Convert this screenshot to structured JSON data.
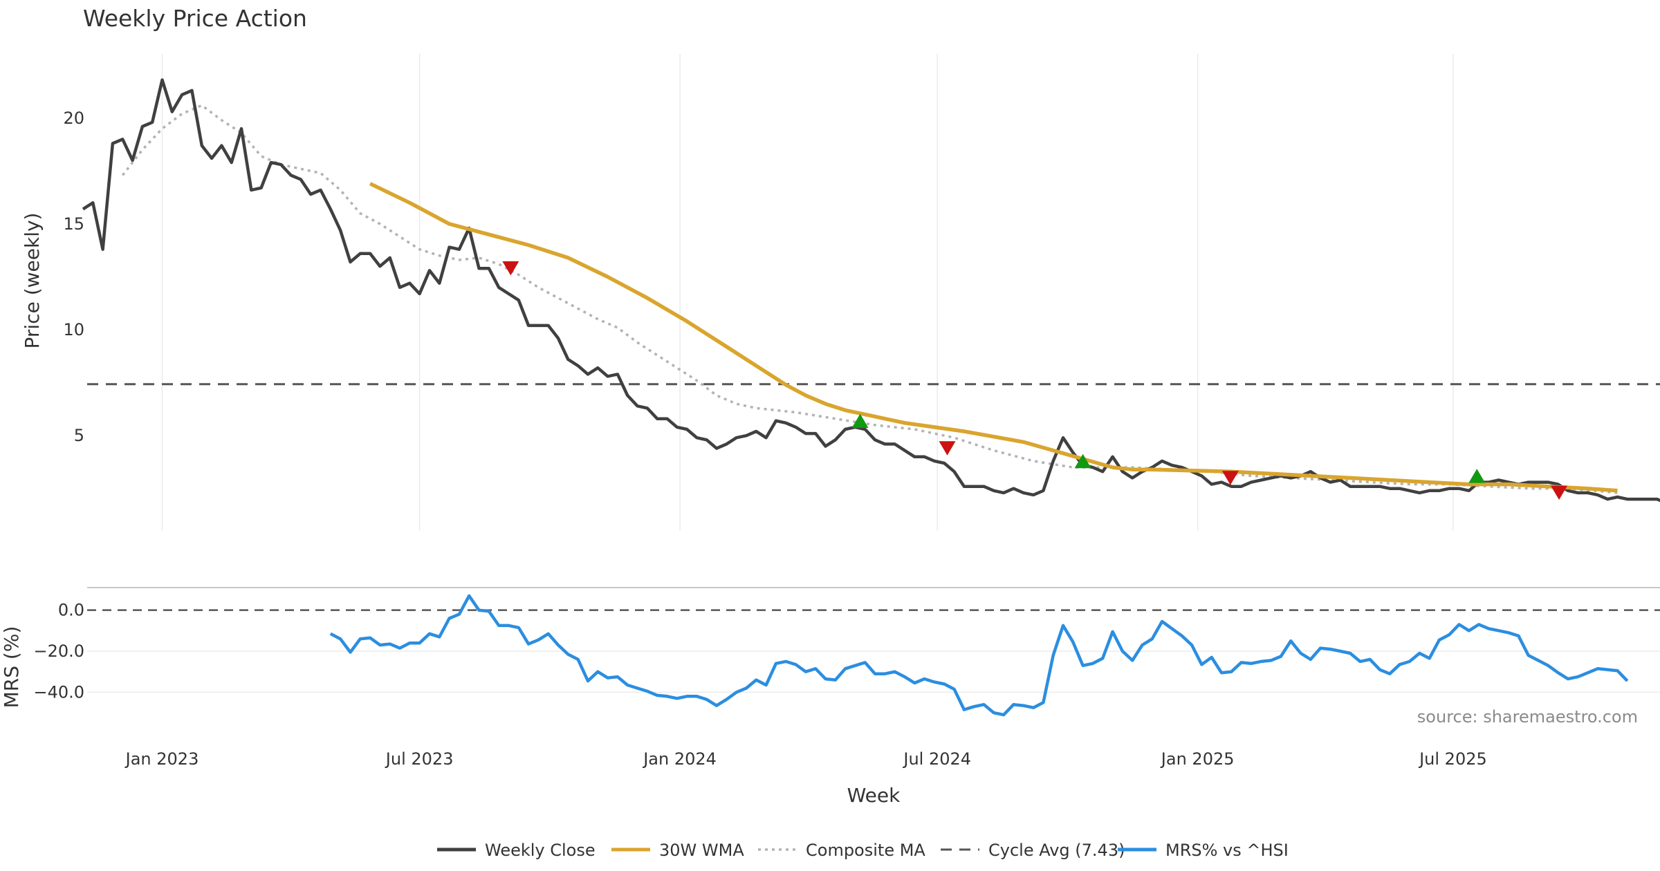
{
  "chart_data": {
    "type": "line",
    "title": "Weekly Price Action",
    "xlabel": "Week",
    "source": "source: sharemaestro.com",
    "x_ticks": [
      {
        "label": "Jan 2023",
        "t": 0
      },
      {
        "label": "Jul 2023",
        "t": 26
      },
      {
        "label": "Jan 2024",
        "t": 52.3
      },
      {
        "label": "Jul 2024",
        "t": 78.3
      },
      {
        "label": "Jan 2025",
        "t": 104.6
      },
      {
        "label": "Jul 2025",
        "t": 130.4
      }
    ],
    "x_range": [
      -8,
      148.5
    ],
    "price_panel": {
      "ylabel": "Price (weekly)",
      "ylim": [
        0.5,
        22.8
      ],
      "y_ticks": [
        5,
        10,
        15,
        20
      ],
      "cycle_avg": 7.43,
      "series": [
        {
          "name": "Weekly Close",
          "color": "#404040",
          "start": -8,
          "values": [
            15.7,
            16.0,
            13.8,
            18.8,
            19.0,
            18.0,
            19.6,
            19.8,
            21.8,
            20.3,
            21.1,
            21.3,
            18.7,
            18.1,
            18.7,
            17.9,
            19.5,
            16.6,
            16.7,
            17.9,
            17.8,
            17.3,
            17.1,
            16.4,
            16.6,
            15.7,
            14.7,
            13.2,
            13.6,
            13.6,
            13.0,
            13.4,
            12.0,
            12.2,
            11.7,
            12.8,
            12.2,
            13.9,
            13.8,
            14.8,
            12.9,
            12.9,
            12.0,
            11.7,
            11.4,
            10.2,
            10.2,
            10.2,
            9.6,
            8.6,
            8.3,
            7.9,
            8.2,
            7.8,
            7.9,
            6.9,
            6.4,
            6.3,
            5.8,
            5.8,
            5.4,
            5.3,
            4.9,
            4.8,
            4.4,
            4.6,
            4.9,
            5.0,
            5.2,
            4.9,
            5.7,
            5.6,
            5.4,
            5.1,
            5.1,
            4.5,
            4.8,
            5.3,
            5.4,
            5.3,
            4.8,
            4.6,
            4.6,
            4.3,
            4.0,
            4.0,
            3.8,
            3.7,
            3.3,
            2.6,
            2.6,
            2.6,
            2.4,
            2.3,
            2.5,
            2.3,
            2.2,
            2.4,
            3.8,
            4.9,
            4.2,
            3.6,
            3.5,
            3.3,
            4.0,
            3.3,
            3.0,
            3.3,
            3.5,
            3.8,
            3.6,
            3.5,
            3.3,
            3.1,
            2.7,
            2.8,
            2.6,
            2.6,
            2.8,
            2.9,
            3.0,
            3.1,
            3.0,
            3.1,
            3.3,
            3.0,
            2.8,
            2.9,
            2.6,
            2.6,
            2.6,
            2.6,
            2.5,
            2.5,
            2.4,
            2.3,
            2.4,
            2.4,
            2.5,
            2.5,
            2.4,
            2.8,
            2.8,
            2.9,
            2.8,
            2.7,
            2.8,
            2.8,
            2.8,
            2.7,
            2.4,
            2.3,
            2.3,
            2.2,
            2.0,
            2.1,
            2.0,
            2.0,
            2.0,
            2.0,
            1.8
          ]
        },
        {
          "name": "30W WMA",
          "color": "#d9a52e",
          "points": [
            [
              21,
              16.9
            ],
            [
              25,
              16.0
            ],
            [
              29,
              15.0
            ],
            [
              33,
              14.5
            ],
            [
              37,
              14.0
            ],
            [
              41,
              13.4
            ],
            [
              45,
              12.5
            ],
            [
              49,
              11.5
            ],
            [
              53,
              10.4
            ],
            [
              57,
              9.2
            ],
            [
              61,
              8.0
            ],
            [
              63,
              7.4
            ],
            [
              65,
              6.9
            ],
            [
              67,
              6.5
            ],
            [
              69,
              6.2
            ],
            [
              72,
              5.9
            ],
            [
              75,
              5.6
            ],
            [
              78,
              5.4
            ],
            [
              81,
              5.2
            ],
            [
              84,
              4.95
            ],
            [
              87,
              4.7
            ],
            [
              90,
              4.3
            ],
            [
              93,
              3.9
            ],
            [
              96,
              3.5
            ],
            [
              98,
              3.4
            ],
            [
              100,
              3.4
            ],
            [
              104,
              3.35
            ],
            [
              108,
              3.3
            ],
            [
              112,
              3.2
            ],
            [
              116,
              3.1
            ],
            [
              120,
              3.0
            ],
            [
              124,
              2.9
            ],
            [
              128,
              2.8
            ],
            [
              132,
              2.7
            ],
            [
              136,
              2.7
            ],
            [
              140,
              2.6
            ],
            [
              144,
              2.5
            ],
            [
              147,
              2.4
            ]
          ]
        },
        {
          "name": "Composite MA",
          "color": "#b3b3b3",
          "points": [
            [
              -4,
              17.3
            ],
            [
              -2,
              18.5
            ],
            [
              0,
              19.5
            ],
            [
              2,
              20.2
            ],
            [
              4,
              20.6
            ],
            [
              6,
              19.9
            ],
            [
              8,
              19.3
            ],
            [
              10,
              18.2
            ],
            [
              12,
              17.8
            ],
            [
              14,
              17.6
            ],
            [
              16,
              17.4
            ],
            [
              18,
              16.6
            ],
            [
              20,
              15.5
            ],
            [
              22,
              15.0
            ],
            [
              24,
              14.4
            ],
            [
              26,
              13.8
            ],
            [
              28,
              13.5
            ],
            [
              30,
              13.3
            ],
            [
              32,
              13.4
            ],
            [
              34,
              13.1
            ],
            [
              36,
              12.6
            ],
            [
              38,
              12.0
            ],
            [
              40,
              11.5
            ],
            [
              42,
              11.0
            ],
            [
              44,
              10.5
            ],
            [
              46,
              10.1
            ],
            [
              48,
              9.4
            ],
            [
              50,
              8.8
            ],
            [
              52,
              8.2
            ],
            [
              54,
              7.6
            ],
            [
              56,
              6.9
            ],
            [
              58,
              6.5
            ],
            [
              60,
              6.3
            ],
            [
              64,
              6.1
            ],
            [
              68,
              5.8
            ],
            [
              72,
              5.5
            ],
            [
              76,
              5.3
            ],
            [
              80,
              4.9
            ],
            [
              84,
              4.3
            ],
            [
              88,
              3.8
            ],
            [
              92,
              3.5
            ],
            [
              95,
              3.5
            ],
            [
              98,
              3.5
            ],
            [
              102,
              3.4
            ],
            [
              106,
              3.3
            ],
            [
              110,
              3.1
            ],
            [
              114,
              3.0
            ],
            [
              118,
              2.9
            ],
            [
              122,
              2.8
            ],
            [
              126,
              2.7
            ],
            [
              130,
              2.7
            ],
            [
              134,
              2.6
            ],
            [
              138,
              2.5
            ],
            [
              142,
              2.5
            ],
            [
              147,
              2.3
            ]
          ]
        }
      ],
      "markers": [
        {
          "type": "sell",
          "t": 35.2,
          "value": 13.0,
          "color": "#cc1111"
        },
        {
          "type": "buy",
          "t": 70.5,
          "value": 5.6,
          "color": "#119911"
        },
        {
          "type": "sell",
          "t": 79.3,
          "value": 4.5,
          "color": "#cc1111"
        },
        {
          "type": "buy",
          "t": 93.0,
          "value": 3.7,
          "color": "#119911"
        },
        {
          "type": "sell",
          "t": 107.9,
          "value": 3.1,
          "color": "#cc1111"
        },
        {
          "type": "buy",
          "t": 132.8,
          "value": 3.0,
          "color": "#119911"
        },
        {
          "type": "sell",
          "t": 141.1,
          "value": 2.4,
          "color": "#cc1111"
        }
      ]
    },
    "mrs_panel": {
      "ylabel": "MRS (%)",
      "ylim": [
        -53,
        11
      ],
      "y_ticks": [
        0,
        -20,
        -40
      ],
      "y_tick_labels": [
        "0.0",
        "−20.0",
        "−40.0"
      ],
      "zero_line": 0,
      "series": {
        "name": "MRS% vs ^HSI",
        "color": "#2b8ee0",
        "start": 17,
        "values": [
          -11.5,
          -14.0,
          -20.5,
          -14.0,
          -13.5,
          -17.0,
          -16.5,
          -18.5,
          -16.0,
          -16.0,
          -11.5,
          -13.0,
          -4.0,
          -2.0,
          7.0,
          0.0,
          -0.5,
          -7.5,
          -7.5,
          -8.5,
          -16.5,
          -14.5,
          -11.5,
          -17.0,
          -21.5,
          -24.0,
          -34.5,
          -30.0,
          -33.0,
          -32.5,
          -36.5,
          -38.0,
          -39.5,
          -41.5,
          -42.0,
          -43.0,
          -42.0,
          -42.0,
          -43.5,
          -46.5,
          -43.5,
          -40.0,
          -38.0,
          -34.0,
          -36.5,
          -26.0,
          -25.0,
          -26.5,
          -30.0,
          -28.5,
          -33.5,
          -34.0,
          -28.5,
          -27.0,
          -25.5,
          -31.0,
          -31.0,
          -30.0,
          -32.5,
          -35.5,
          -33.5,
          -35.0,
          -36.0,
          -38.5,
          -48.5,
          -47.0,
          -46.0,
          -50.0,
          -51.0,
          -46.0,
          -46.5,
          -47.5,
          -45.0,
          -22.0,
          -7.5,
          -15.5,
          -27.0,
          -26.0,
          -23.5,
          -10.5,
          -20.0,
          -24.5,
          -17.0,
          -14.0,
          -5.5,
          -9.0,
          -12.5,
          -17.0,
          -26.5,
          -23.0,
          -30.5,
          -30.0,
          -25.5,
          -26.0,
          -25.0,
          -24.5,
          -22.5,
          -15.0,
          -21.0,
          -24.0,
          -18.5,
          -19.0,
          -20.0,
          -21.0,
          -25.0,
          -24.0,
          -29.0,
          -31.0,
          -26.5,
          -25.0,
          -21.0,
          -23.5,
          -14.5,
          -12.0,
          -7.0,
          -10.0,
          -7.0,
          -9.0,
          -10.0,
          -11.0,
          -12.5,
          -22.0,
          -24.5,
          -27.0,
          -30.5,
          -33.5,
          -32.5,
          -30.5,
          -28.5,
          -29.0,
          -29.5,
          -34.5
        ]
      }
    },
    "legend": [
      {
        "label": "Weekly Close",
        "style": "solid",
        "color": "#404040"
      },
      {
        "label": "30W WMA",
        "style": "solid",
        "color": "#d9a52e"
      },
      {
        "label": "Composite MA",
        "style": "dotted",
        "color": "#b3b3b3"
      },
      {
        "label": "Cycle Avg (7.43)",
        "style": "dashed",
        "color": "#555555"
      },
      {
        "label": "MRS% vs ^HSI",
        "style": "solid",
        "color": "#2b8ee0"
      }
    ]
  }
}
